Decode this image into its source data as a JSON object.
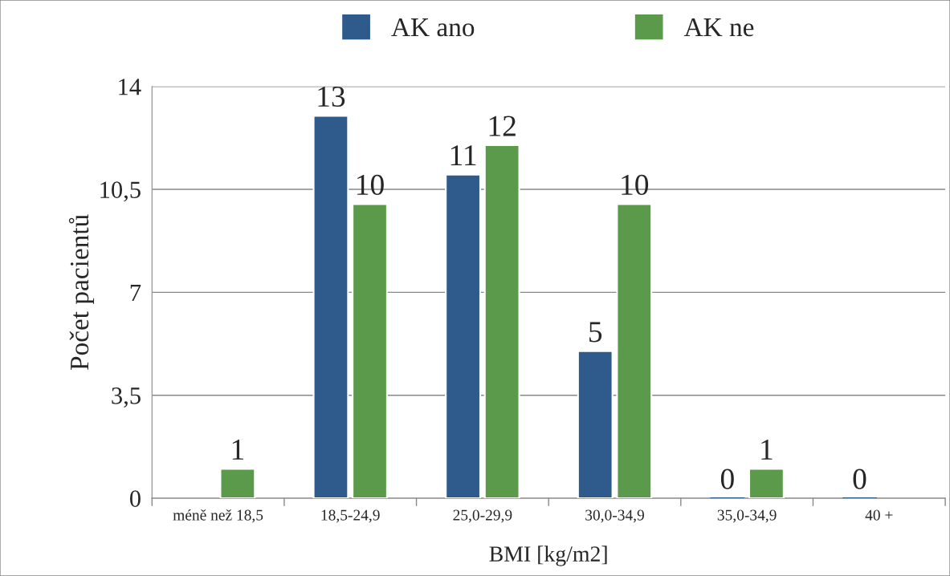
{
  "chart_data": {
    "type": "bar",
    "categories": [
      "méně než 18,5",
      "18,5-24,9",
      "25,0-29,9",
      "30,0-34,9",
      "35,0-34,9",
      "40 +"
    ],
    "series": [
      {
        "name": "AK ano",
        "color": "#2e5a8c",
        "values": [
          null,
          13,
          11,
          5,
          0,
          0
        ],
        "value_labels": [
          null,
          "13",
          "11",
          "5",
          "0",
          "0"
        ]
      },
      {
        "name": "AK ne",
        "color": "#5b9a4a",
        "values": [
          1,
          10,
          12,
          10,
          1,
          null
        ],
        "value_labels": [
          "1",
          "10",
          "12",
          "10",
          "1",
          null
        ]
      }
    ],
    "xlabel": "BMI [kg/m2]",
    "ylabel": "Počet pacientů",
    "ylim": [
      0,
      14
    ],
    "yticks": [
      0,
      {
        "value": 3.5,
        "label": "3,5"
      },
      7,
      {
        "value": 10.5,
        "label": "10,5"
      },
      14
    ],
    "grid": "y",
    "legend": "top"
  }
}
